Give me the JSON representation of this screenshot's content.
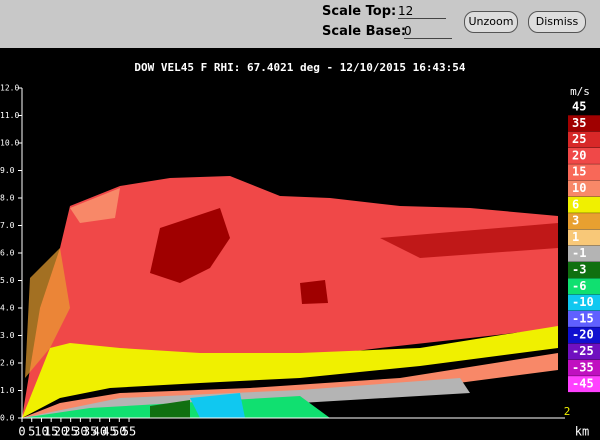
{
  "toolbar": {
    "scale_top_label": "Scale Top:",
    "scale_top_value": "12",
    "scale_base_label": "Scale Base:",
    "scale_base_value": "0",
    "unzoom": "Unzoom",
    "dismiss": "Dismiss"
  },
  "plot": {
    "title": "DOW VEL45 F  RHI: 67.4021 deg  -  12/10/2015 16:43:54",
    "x_ticks": [
      "0",
      "5",
      "10",
      "15",
      "20",
      "25",
      "30",
      "35",
      "40",
      "45",
      "50",
      "55"
    ],
    "x_unit": "km",
    "y_ticks": [
      "12.0",
      "11.0",
      "10.0",
      "9.0",
      "8.0",
      "7.0",
      "6.0",
      "5.0",
      "4.0",
      "3.0",
      "2.0",
      "1.0",
      "0.0"
    ],
    "corner_label": "2",
    "colorbar": {
      "unit": "m/s",
      "entries": [
        {
          "label": "45",
          "color": "#000000"
        },
        {
          "label": "35",
          "color": "#a00000"
        },
        {
          "label": "25",
          "color": "#d82828"
        },
        {
          "label": "20",
          "color": "#f04848"
        },
        {
          "label": "15",
          "color": "#f86858"
        },
        {
          "label": "10",
          "color": "#f88868"
        },
        {
          "label": "6",
          "color": "#f0f000"
        },
        {
          "label": "3",
          "color": "#e8a030"
        },
        {
          "label": "1",
          "color": "#f8c878"
        },
        {
          "label": "-1",
          "color": "#b4b4b4"
        },
        {
          "label": "-3",
          "color": "#107010"
        },
        {
          "label": "-6",
          "color": "#10e070"
        },
        {
          "label": "-10",
          "color": "#10c8f0"
        },
        {
          "label": "-15",
          "color": "#6060ff"
        },
        {
          "label": "-20",
          "color": "#1010d0"
        },
        {
          "label": "-25",
          "color": "#7010c0"
        },
        {
          "label": "-35",
          "color": "#c010c0"
        },
        {
          "label": "-45",
          "color": "#ff40ff"
        }
      ]
    }
  }
}
